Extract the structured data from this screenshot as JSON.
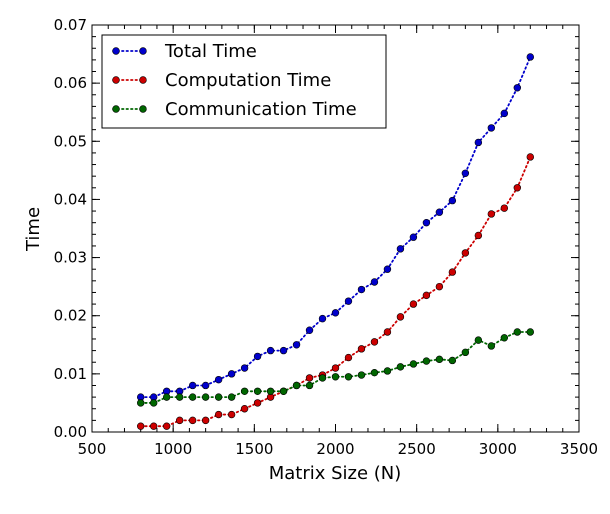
{
  "chart_data": {
    "type": "line",
    "title": "",
    "xlabel": "Matrix Size (N)",
    "ylabel": "Time",
    "xlim": [
      500,
      3500
    ],
    "ylim": [
      0,
      0.07
    ],
    "xticks": [
      500,
      1000,
      1500,
      2000,
      2500,
      3000,
      3500
    ],
    "yticks": [
      0.0,
      0.01,
      0.02,
      0.03,
      0.04,
      0.05,
      0.06,
      0.07
    ],
    "xtick_labels": [
      "500",
      "1000",
      "1500",
      "2000",
      "2500",
      "3000",
      "3500"
    ],
    "ytick_labels": [
      "0.00",
      "0.01",
      "0.02",
      "0.03",
      "0.04",
      "0.05",
      "0.06",
      "0.07"
    ],
    "grid": false,
    "legend_position": "top-left",
    "x": [
      800,
      880,
      960,
      1040,
      1120,
      1200,
      1280,
      1360,
      1440,
      1520,
      1600,
      1680,
      1760,
      1840,
      1920,
      2000,
      2080,
      2160,
      2240,
      2320,
      2400,
      2480,
      2560,
      2640,
      2720,
      2800,
      2880,
      2960,
      3040,
      3120,
      3200
    ],
    "series": [
      {
        "name": "Total Time",
        "color": "#0000cc",
        "values": [
          0.006,
          0.006,
          0.007,
          0.007,
          0.008,
          0.008,
          0.009,
          0.01,
          0.011,
          0.013,
          0.014,
          0.014,
          0.015,
          0.0175,
          0.0195,
          0.0205,
          0.0225,
          0.0245,
          0.0258,
          0.028,
          0.0315,
          0.0335,
          0.036,
          0.0378,
          0.0398,
          0.0445,
          0.0498,
          0.0523,
          0.0548,
          0.0592,
          0.0645
        ]
      },
      {
        "name": "Computation Time",
        "color": "#cc0000",
        "values": [
          0.001,
          0.001,
          0.001,
          0.002,
          0.002,
          0.002,
          0.003,
          0.003,
          0.004,
          0.005,
          0.006,
          0.007,
          0.008,
          0.0093,
          0.0098,
          0.011,
          0.0128,
          0.0143,
          0.0155,
          0.0172,
          0.0198,
          0.022,
          0.0235,
          0.025,
          0.0275,
          0.0308,
          0.0338,
          0.0375,
          0.0385,
          0.042,
          0.0473
        ]
      },
      {
        "name": "Communication Time",
        "color": "#006600",
        "values": [
          0.005,
          0.005,
          0.006,
          0.006,
          0.006,
          0.006,
          0.006,
          0.006,
          0.007,
          0.007,
          0.007,
          0.007,
          0.008,
          0.008,
          0.0093,
          0.0095,
          0.0095,
          0.0098,
          0.0102,
          0.0105,
          0.0112,
          0.0117,
          0.0122,
          0.0125,
          0.0123,
          0.0137,
          0.0158,
          0.0148,
          0.0162,
          0.0172,
          0.0172
        ]
      }
    ]
  }
}
